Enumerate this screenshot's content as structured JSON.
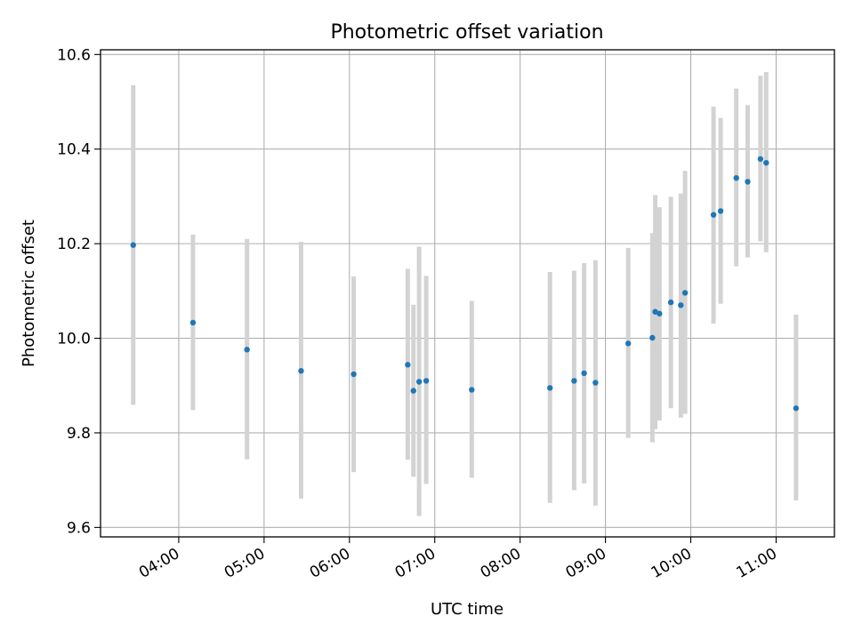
{
  "chart_data": {
    "type": "scatter",
    "title": "Photometric offset variation",
    "xlabel": "UTC time",
    "ylabel": "Photometric offset",
    "x_axis_kind": "time",
    "xlim": [
      "03:05",
      "11:41"
    ],
    "ylim": [
      9.58,
      10.61
    ],
    "x_ticks": [
      "04:00",
      "05:00",
      "06:00",
      "07:00",
      "08:00",
      "09:00",
      "10:00",
      "11:00"
    ],
    "y_ticks": [
      9.6,
      9.8,
      10.0,
      10.2,
      10.4,
      10.6
    ],
    "y_tick_labels": [
      "9.6",
      "9.8",
      "10.0",
      "10.2",
      "10.4",
      "10.6"
    ],
    "grid": true,
    "legend": "none",
    "colors": {
      "point": "#1f77b4",
      "errorbar": "#d3d3d3",
      "grid": "#b0b0b0"
    },
    "points": [
      {
        "x": "03:28",
        "y": 10.197,
        "lo": 9.859,
        "hi": 10.535
      },
      {
        "x": "04:10",
        "y": 10.033,
        "lo": 9.848,
        "hi": 10.219
      },
      {
        "x": "04:48",
        "y": 9.976,
        "lo": 9.744,
        "hi": 10.21
      },
      {
        "x": "05:26",
        "y": 9.931,
        "lo": 9.661,
        "hi": 10.204
      },
      {
        "x": "06:03",
        "y": 9.924,
        "lo": 9.717,
        "hi": 10.131
      },
      {
        "x": "06:41",
        "y": 9.944,
        "lo": 9.743,
        "hi": 10.147
      },
      {
        "x": "06:45",
        "y": 9.889,
        "lo": 9.707,
        "hi": 10.071
      },
      {
        "x": "06:49",
        "y": 9.908,
        "lo": 9.624,
        "hi": 10.194
      },
      {
        "x": "06:54",
        "y": 9.91,
        "lo": 9.692,
        "hi": 10.132
      },
      {
        "x": "07:26",
        "y": 9.891,
        "lo": 9.705,
        "hi": 10.079
      },
      {
        "x": "08:21",
        "y": 9.895,
        "lo": 9.652,
        "hi": 10.14
      },
      {
        "x": "08:38",
        "y": 9.91,
        "lo": 9.679,
        "hi": 10.143
      },
      {
        "x": "08:45",
        "y": 9.926,
        "lo": 9.693,
        "hi": 10.159
      },
      {
        "x": "08:53",
        "y": 9.906,
        "lo": 9.646,
        "hi": 10.165
      },
      {
        "x": "09:16",
        "y": 9.989,
        "lo": 9.789,
        "hi": 10.191
      },
      {
        "x": "09:33",
        "y": 10.001,
        "lo": 9.78,
        "hi": 10.222
      },
      {
        "x": "09:35",
        "y": 10.056,
        "lo": 9.808,
        "hi": 10.303
      },
      {
        "x": "09:38",
        "y": 10.052,
        "lo": 9.826,
        "hi": 10.277
      },
      {
        "x": "09:46",
        "y": 10.076,
        "lo": 9.852,
        "hi": 10.299
      },
      {
        "x": "09:53",
        "y": 10.07,
        "lo": 9.832,
        "hi": 10.306
      },
      {
        "x": "09:56",
        "y": 10.096,
        "lo": 9.84,
        "hi": 10.354
      },
      {
        "x": "10:16",
        "y": 10.261,
        "lo": 10.031,
        "hi": 10.49
      },
      {
        "x": "10:21",
        "y": 10.269,
        "lo": 10.073,
        "hi": 10.466
      },
      {
        "x": "10:32",
        "y": 10.339,
        "lo": 10.152,
        "hi": 10.528
      },
      {
        "x": "10:40",
        "y": 10.331,
        "lo": 10.171,
        "hi": 10.493
      },
      {
        "x": "10:49",
        "y": 10.379,
        "lo": 10.205,
        "hi": 10.555
      },
      {
        "x": "10:53",
        "y": 10.371,
        "lo": 10.182,
        "hi": 10.563
      },
      {
        "x": "11:14",
        "y": 9.852,
        "lo": 9.657,
        "hi": 10.05
      }
    ]
  }
}
